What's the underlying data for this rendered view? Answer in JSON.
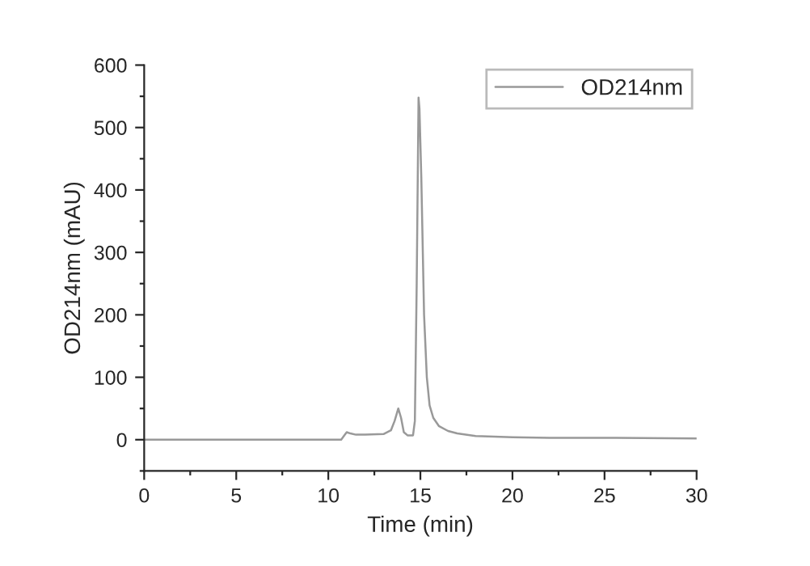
{
  "chart_data": {
    "type": "line",
    "xlabel": "Time (min)",
    "ylabel": "OD214nm (mAU)",
    "x": [
      0,
      5,
      10,
      10.7,
      10.9,
      11.0,
      11.2,
      11.5,
      12,
      13,
      13.4,
      13.6,
      13.8,
      13.95,
      14.1,
      14.3,
      14.6,
      14.7,
      14.8,
      14.9,
      14.95,
      15.05,
      15.2,
      15.35,
      15.5,
      15.7,
      16,
      16.5,
      17,
      18,
      20,
      22,
      25,
      30
    ],
    "series": [
      {
        "name": "OD214nm",
        "color": "#999999",
        "values": [
          0,
          0,
          0,
          0,
          8,
          12,
          10,
          8,
          8,
          9,
          15,
          30,
          50,
          35,
          12,
          7,
          7,
          30,
          250,
          548,
          530,
          420,
          200,
          100,
          55,
          35,
          22,
          14,
          10,
          6,
          4,
          3,
          3,
          2
        ]
      }
    ],
    "xlim": [
      0,
      30
    ],
    "xticks": [
      0,
      5,
      10,
      15,
      20,
      25,
      30
    ],
    "ylim": [
      -50,
      600
    ],
    "yticks": [
      0,
      100,
      200,
      300,
      400,
      500,
      600
    ],
    "legend": "top right",
    "grid": false,
    "marker": "none",
    "line_style": "solid"
  }
}
